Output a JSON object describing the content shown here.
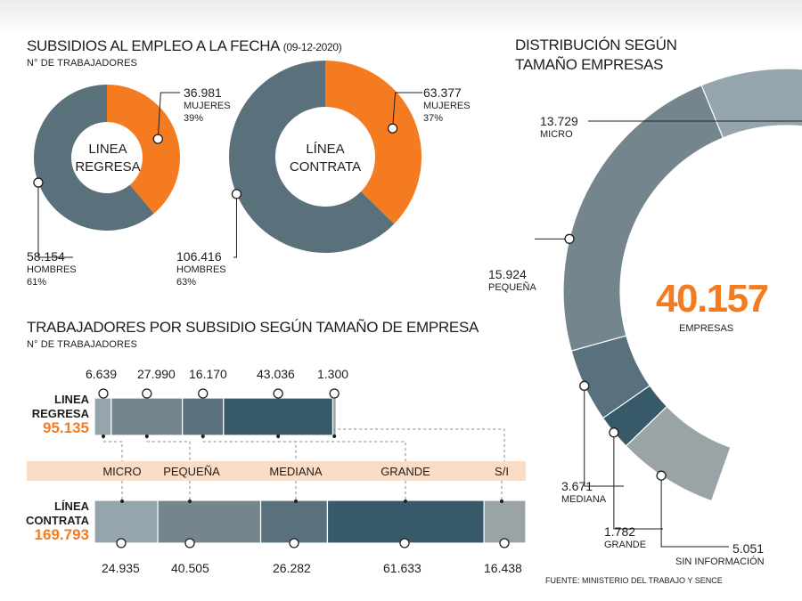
{
  "colors": {
    "orange": "#f47b20",
    "micro": "#94a5ad",
    "pequena": "#74858e",
    "mediana": "#59717c",
    "grande": "#37596a",
    "si": "#9aa3a5",
    "donut_men": "#5a717c",
    "band": "#fbdcc4"
  },
  "header1": {
    "title": "SUBSIDIOS AL EMPLEO A LA FECHA",
    "date": "(09-12-2020)",
    "subtitle": "N° DE TRABAJADORES"
  },
  "header2": {
    "title": "TRABAJADORES POR SUBSIDIO SEGÚN TAMAÑO DE EMPRESA",
    "subtitle": "N° DE TRABAJADORES"
  },
  "header3": {
    "line1": "DISTRIBUCIÓN SEGÚN",
    "line2": "TAMAÑO EMPRESAS"
  },
  "source": "FUENTE: MINISTERIO DEL TRABAJO Y SENCE",
  "chart_data": [
    {
      "type": "pie",
      "center_line1": "LINEA",
      "center_line2": "REGRESA",
      "slices": [
        {
          "label": "MUJERES",
          "value": 36981,
          "value_text": "36.981",
          "pct_text": "39%"
        },
        {
          "label": "HOMBRES",
          "value": 58154,
          "value_text": "58.154",
          "pct_text": "61%"
        }
      ]
    },
    {
      "type": "pie",
      "center_line1": "LÍNEA",
      "center_line2": "CONTRATA",
      "slices": [
        {
          "label": "MUJERES",
          "value": 63377,
          "value_text": "63.377",
          "pct_text": "37%"
        },
        {
          "label": "HOMBRES",
          "value": 106416,
          "value_text": "106.416",
          "pct_text": "63%"
        }
      ]
    },
    {
      "type": "bar",
      "stacked": true,
      "categories": [
        "MICRO",
        "PEQUEÑA",
        "MEDIANA",
        "GRANDE",
        "S/I"
      ],
      "series": [
        {
          "name_line1": "LINEA",
          "name_line2": "REGRESA",
          "total_text": "95.135",
          "values": [
            6639,
            27990,
            16170,
            43036,
            1300
          ],
          "value_texts": [
            "6.639",
            "27.990",
            "16.170",
            "43.036",
            "1.300"
          ]
        },
        {
          "name_line1": "LÍNEA",
          "name_line2": "CONTRATA",
          "total_text": "169.793",
          "values": [
            24935,
            40505,
            26282,
            61633,
            16438
          ],
          "value_texts": [
            "24.935",
            "40.505",
            "26.282",
            "61.633",
            "16.438"
          ]
        }
      ]
    },
    {
      "type": "pie",
      "total_text": "40.157",
      "total_label": "EMPRESAS",
      "slices": [
        {
          "label": "MICRO",
          "value": 13729,
          "value_text": "13.729"
        },
        {
          "label": "PEQUEÑA",
          "value": 15924,
          "value_text": "15.924"
        },
        {
          "label": "MEDIANA",
          "value": 3671,
          "value_text": "3.671"
        },
        {
          "label": "GRANDE",
          "value": 1782,
          "value_text": "1.782"
        },
        {
          "label": "SIN INFORMACIÓN",
          "value": 5051,
          "value_text": "5.051"
        }
      ]
    }
  ]
}
